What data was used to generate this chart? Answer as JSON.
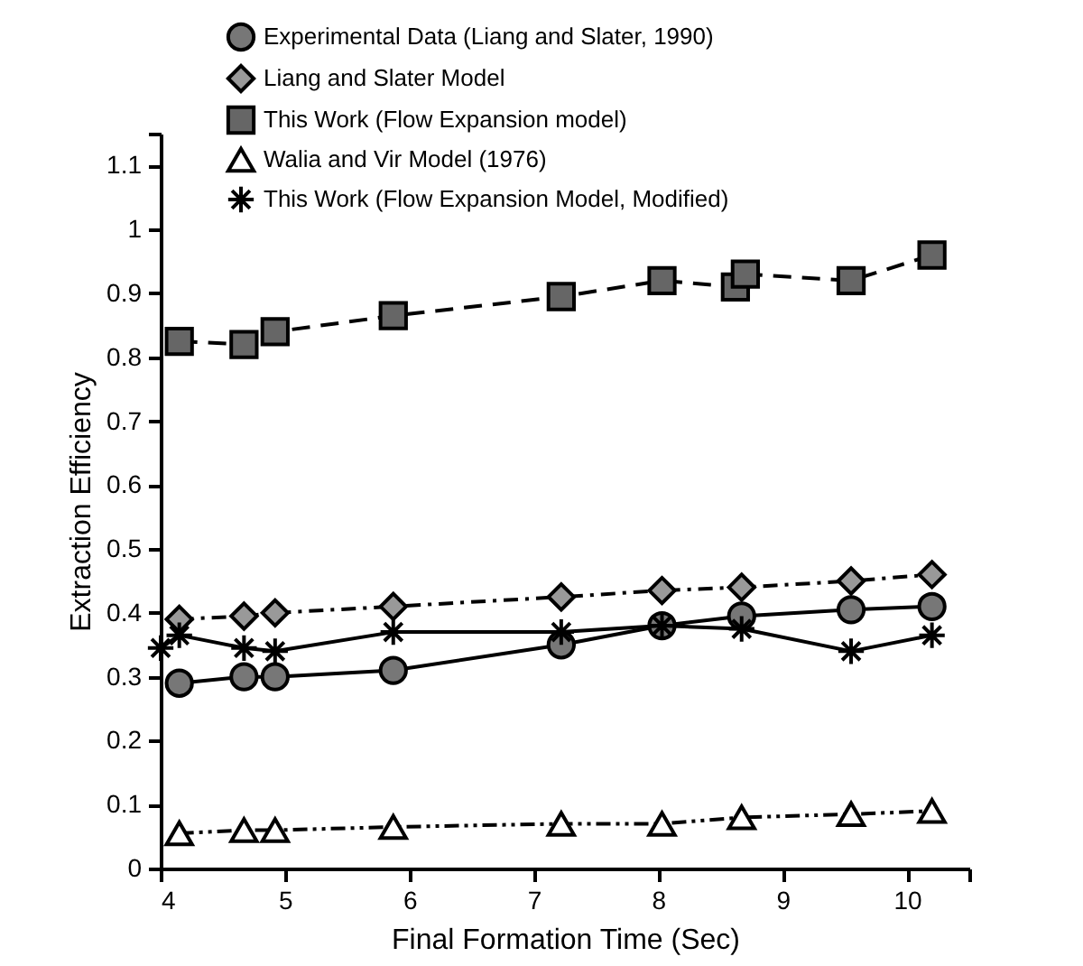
{
  "chart_data": {
    "type": "line",
    "xlabel": "Final Formation Time (Sec)",
    "ylabel": "Extraction Efficiency",
    "xlim": [
      4,
      10.5
    ],
    "xticks": [
      4,
      5,
      6,
      7,
      8,
      9,
      10,
      {
        "value": 10.5,
        "label": null
      }
    ],
    "ylim": [
      0,
      1.15
    ],
    "yticks": [
      0,
      0.1,
      0.2,
      0.3,
      0.4,
      0.5,
      0.6,
      0.7,
      0.8,
      0.9,
      1,
      1.1,
      {
        "value": 1.15,
        "label": null
      }
    ],
    "grid": false,
    "legend": "top",
    "series": [
      {
        "name": "Experimental Data (Liang and Slater, 1990)",
        "color": "#000000",
        "marker": "circle",
        "line_style": "solid",
        "x": [
          4.15,
          4.67,
          4.92,
          5.87,
          7.22,
          8.03,
          8.67,
          9.55,
          10.2
        ],
        "values": [
          0.29,
          0.3,
          0.3,
          0.31,
          0.35,
          0.38,
          0.395,
          0.405,
          0.41
        ]
      },
      {
        "name": "Liang and Slater Model",
        "color": "#000000",
        "marker": "diamond",
        "line_style": "dashdot",
        "x": [
          4.15,
          4.67,
          4.92,
          5.87,
          7.22,
          8.03,
          8.67,
          9.55,
          10.2
        ],
        "values": [
          0.39,
          0.395,
          0.4,
          0.41,
          0.425,
          0.435,
          0.44,
          0.45,
          0.46
        ]
      },
      {
        "name": "This Work (Flow Expansion model)",
        "color": "#000000",
        "marker": "square",
        "line_style": "dashed",
        "x": [
          4.15,
          4.67,
          4.92,
          5.87,
          7.22,
          8.03,
          8.62,
          8.7,
          9.55,
          10.2
        ],
        "values": [
          0.825,
          0.82,
          0.84,
          0.865,
          0.895,
          0.92,
          0.91,
          0.93,
          0.92,
          0.96
        ]
      },
      {
        "name": "Walia and Vir Model (1976)",
        "color": "#000000",
        "marker": "triangle",
        "line_style": "dashdotdot",
        "x": [
          4.15,
          4.67,
          4.92,
          5.87,
          7.22,
          8.03,
          8.67,
          9.55,
          10.2
        ],
        "values": [
          0.055,
          0.06,
          0.06,
          0.065,
          0.07,
          0.07,
          0.08,
          0.085,
          0.09
        ]
      },
      {
        "name": "This Work (Flow Expansion Model, Modified)",
        "color": "#000000",
        "marker": "cross",
        "line_style": "solid",
        "x": [
          4,
          4.15,
          4.67,
          4.92,
          5.87,
          7.22,
          8.03,
          8.67,
          9.55,
          10.2
        ],
        "values": [
          0.345,
          0.365,
          0.345,
          0.34,
          0.37,
          0.37,
          0.38,
          0.375,
          0.34,
          0.365
        ]
      }
    ]
  }
}
